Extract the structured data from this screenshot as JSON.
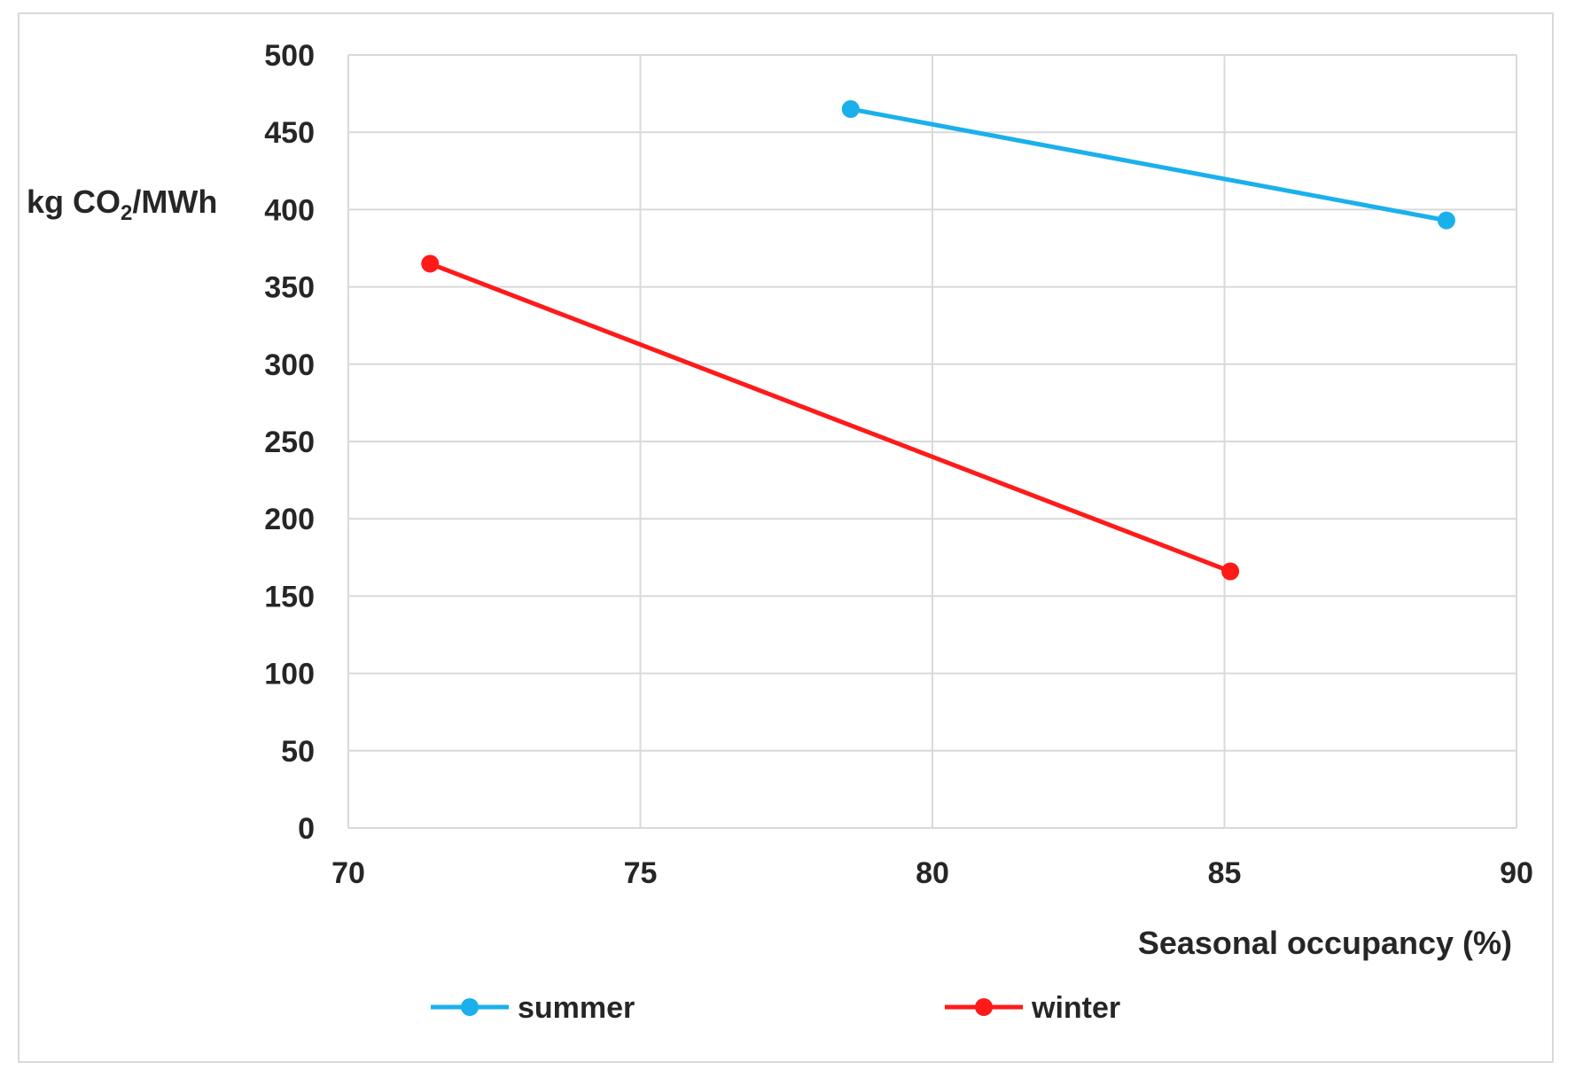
{
  "chart_data": {
    "type": "line",
    "xlabel": "Seasonal occupancy (%)",
    "ylabel": {
      "prefix": "kg CO",
      "subscript": "2",
      "suffix": "/MWh"
    },
    "xlim": [
      70,
      90
    ],
    "ylim": [
      0,
      500
    ],
    "xticks": [
      70,
      75,
      80,
      85,
      90
    ],
    "yticks": [
      0,
      50,
      100,
      150,
      200,
      250,
      300,
      350,
      400,
      450,
      500
    ],
    "grid": true,
    "legend_position": "bottom",
    "series": [
      {
        "name": "summer",
        "color": "#1ab0ec",
        "points": [
          [
            78.6,
            465
          ],
          [
            88.8,
            393
          ]
        ]
      },
      {
        "name": "winter",
        "color": "#ff1a1a",
        "points": [
          [
            71.4,
            365
          ],
          [
            85.1,
            166
          ]
        ]
      }
    ]
  }
}
